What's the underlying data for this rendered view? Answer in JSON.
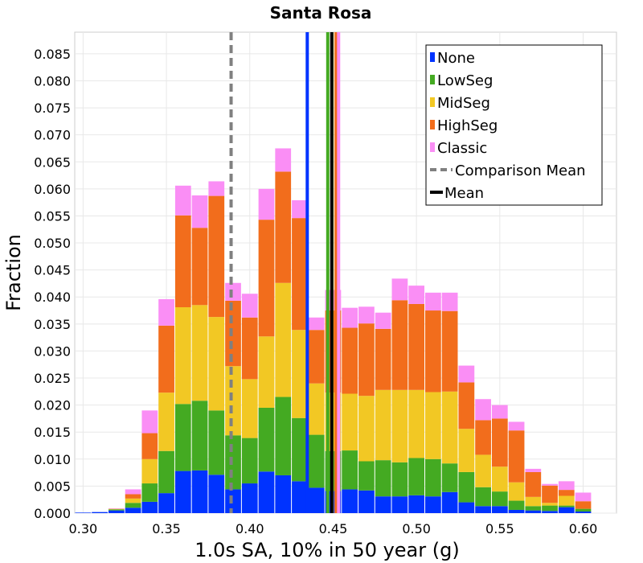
{
  "chart_data": {
    "type": "bar",
    "stacked": true,
    "title": "Santa Rosa",
    "xlabel": "1.0s SA, 10% in 50 year (g)",
    "ylabel": "Fraction",
    "xlim": [
      0.295,
      0.62
    ],
    "ylim": [
      0,
      0.089
    ],
    "bin_width": 0.01,
    "x_ticks": [
      "0.30",
      "0.35",
      "0.40",
      "0.45",
      "0.50",
      "0.55",
      "0.60"
    ],
    "y_ticks": [
      "0.000",
      "0.005",
      "0.010",
      "0.015",
      "0.020",
      "0.025",
      "0.030",
      "0.035",
      "0.040",
      "0.045",
      "0.050",
      "0.055",
      "0.060",
      "0.065",
      "0.070",
      "0.075",
      "0.080",
      "0.085"
    ],
    "grid": true,
    "legend_position": "top-right",
    "x": [
      0.3,
      0.31,
      0.32,
      0.33,
      0.34,
      0.35,
      0.36,
      0.37,
      0.38,
      0.39,
      0.4,
      0.41,
      0.42,
      0.43,
      0.44,
      0.45,
      0.46,
      0.47,
      0.48,
      0.49,
      0.5,
      0.51,
      0.52,
      0.53,
      0.54,
      0.55,
      0.56,
      0.57,
      0.58,
      0.59,
      0.6,
      0.61
    ],
    "series": [
      {
        "name": "None",
        "color": "#0033ff",
        "values": [
          0.0001,
          0.0002,
          0.0005,
          0.001,
          0.0021,
          0.0037,
          0.0078,
          0.0079,
          0.0071,
          0.0044,
          0.0055,
          0.0077,
          0.007,
          0.0059,
          0.0047,
          0.0041,
          0.0044,
          0.0042,
          0.0031,
          0.0031,
          0.0033,
          0.0031,
          0.0039,
          0.002,
          0.0013,
          0.0013,
          0.0006,
          0.0005,
          0.0004,
          0.0011,
          0.0003,
          0.0
        ]
      },
      {
        "name": "LowSeg",
        "color": "#44aa22",
        "values": [
          0.0,
          0.0,
          0.0002,
          0.0009,
          0.0034,
          0.0078,
          0.0124,
          0.0129,
          0.0119,
          0.01,
          0.0084,
          0.0118,
          0.0145,
          0.0117,
          0.0098,
          0.0074,
          0.0072,
          0.0054,
          0.0067,
          0.0063,
          0.0069,
          0.0069,
          0.0053,
          0.0056,
          0.0035,
          0.0027,
          0.0017,
          0.0008,
          0.001,
          0.0003,
          0.0005,
          0.0
        ]
      },
      {
        "name": "MidSeg",
        "color": "#f2c824",
        "values": [
          0.0,
          0.0,
          0.0001,
          0.0008,
          0.0045,
          0.0108,
          0.0179,
          0.0177,
          0.0173,
          0.0128,
          0.0109,
          0.0132,
          0.0211,
          0.0163,
          0.0095,
          0.0108,
          0.0105,
          0.0121,
          0.013,
          0.0134,
          0.0126,
          0.0124,
          0.0133,
          0.008,
          0.006,
          0.0046,
          0.0034,
          0.0017,
          0.0005,
          0.0018,
          0.0,
          0.0
        ]
      },
      {
        "name": "HighSeg",
        "color": "#f26d1c",
        "values": [
          0.0,
          0.0,
          0.0,
          0.0008,
          0.0048,
          0.0124,
          0.017,
          0.0143,
          0.0224,
          0.0121,
          0.0114,
          0.0216,
          0.0206,
          0.0207,
          0.0099,
          0.0152,
          0.0122,
          0.0134,
          0.0113,
          0.0166,
          0.0159,
          0.0151,
          0.0149,
          0.0086,
          0.0064,
          0.0089,
          0.0096,
          0.0046,
          0.0032,
          0.0011,
          0.0014,
          0.0
        ]
      },
      {
        "name": "Classic",
        "color": "#fa8ef5",
        "values": [
          0.0,
          0.0,
          0.0001,
          0.0009,
          0.0042,
          0.0049,
          0.0055,
          0.006,
          0.0027,
          0.0033,
          0.0044,
          0.0057,
          0.0043,
          0.0033,
          0.0023,
          0.0038,
          0.0037,
          0.0031,
          0.003,
          0.004,
          0.0034,
          0.0033,
          0.0034,
          0.0031,
          0.0039,
          0.0025,
          0.0016,
          0.0006,
          0.0003,
          0.0016,
          0.0016,
          0.0
        ]
      }
    ],
    "mean_lines": [
      {
        "series": "None",
        "x": 0.4345,
        "color": "#0033ff",
        "style": "solid"
      },
      {
        "series": "LowSeg",
        "x": 0.4468,
        "color": "#44aa22",
        "style": "solid"
      },
      {
        "series": "MidSeg",
        "x": 0.4494,
        "color": "#f2c824",
        "style": "solid"
      },
      {
        "series": "HighSeg",
        "x": 0.4518,
        "color": "#f26d1c",
        "style": "solid"
      },
      {
        "series": "Classic",
        "x": 0.4533,
        "color": "#fa8ef5",
        "style": "solid"
      },
      {
        "series": "Comparison Mean",
        "x": 0.3888,
        "color": "#808080",
        "style": "dashed"
      },
      {
        "series": "Mean",
        "x": 0.4492,
        "color": "#000000",
        "style": "solid"
      }
    ],
    "legend": [
      {
        "label": "None",
        "color": "#0033ff",
        "kind": "box"
      },
      {
        "label": "LowSeg",
        "color": "#44aa22",
        "kind": "box"
      },
      {
        "label": "MidSeg",
        "color": "#f2c824",
        "kind": "box"
      },
      {
        "label": "HighSeg",
        "color": "#f26d1c",
        "kind": "box"
      },
      {
        "label": "Classic",
        "color": "#fa8ef5",
        "kind": "box"
      },
      {
        "label": "Comparison Mean",
        "color": "#808080",
        "kind": "dashed"
      },
      {
        "label": "Mean",
        "color": "#000000",
        "kind": "line"
      }
    ]
  }
}
